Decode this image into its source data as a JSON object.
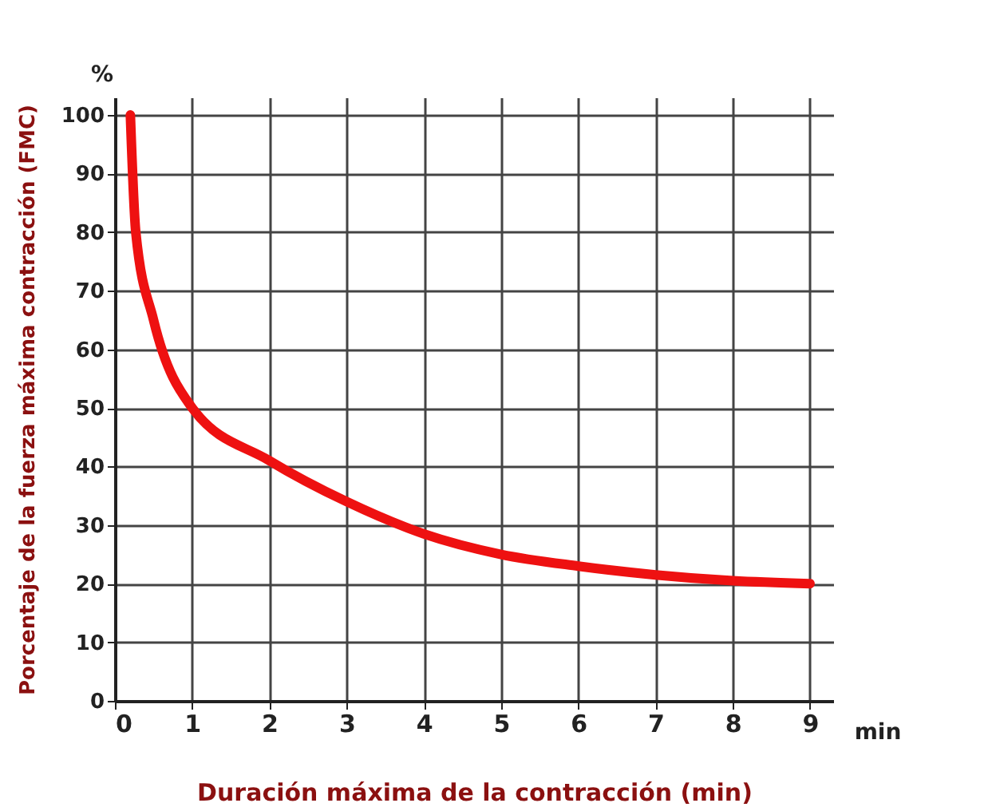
{
  "chart_data": {
    "type": "line",
    "xlabel": "Duración máxima de la contracción (min)",
    "ylabel": "Porcentaje de la fuerza máxima contracción (FMC)",
    "x": [
      0.2,
      0.27,
      0.5,
      1,
      2,
      3,
      4,
      5,
      6,
      7,
      8,
      9
    ],
    "series": [
      {
        "color": "#ee1111",
        "values": [
          100,
          80,
          65,
          50,
          41,
          34,
          28.5,
          25,
          23,
          21.5,
          20.5,
          20
        ]
      }
    ],
    "xlim": [
      0,
      9.3
    ],
    "ylim": [
      0,
      103
    ],
    "xticks": [
      0,
      1,
      2,
      3,
      4,
      5,
      6,
      7,
      8,
      9
    ],
    "yticks": [
      0,
      10,
      20,
      30,
      40,
      50,
      60,
      70,
      80,
      90,
      100
    ],
    "grid": true,
    "line_style": "solid",
    "marker": "none",
    "annotations": [
      "%",
      "min"
    ]
  }
}
